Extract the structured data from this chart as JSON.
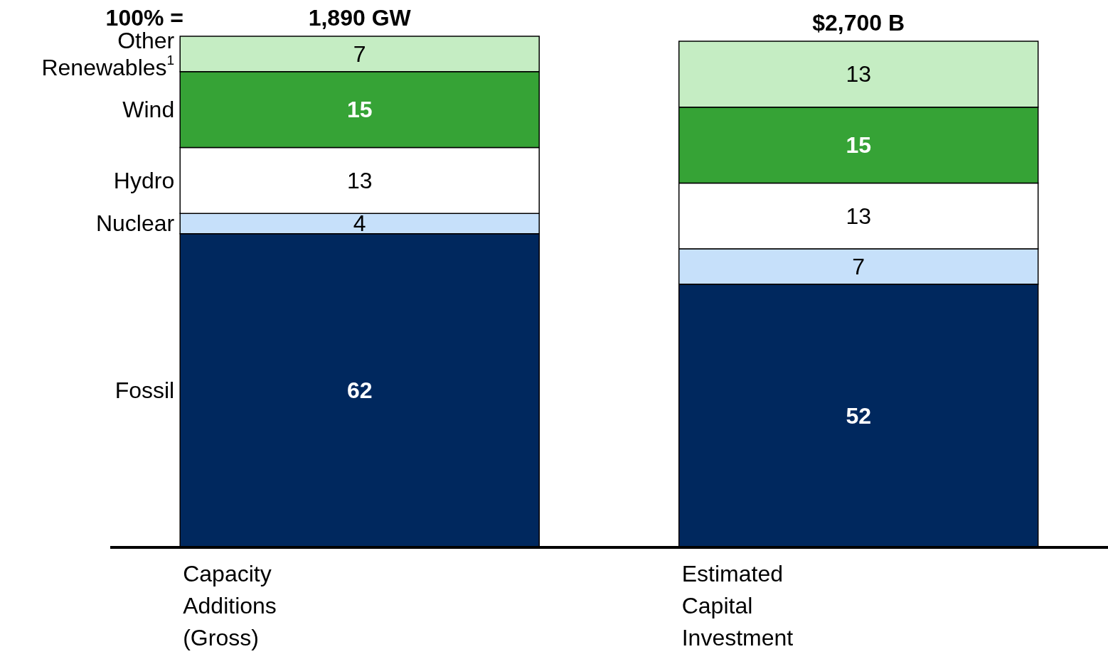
{
  "chart_data": {
    "type": "bar",
    "title": "100% =",
    "stacked": true,
    "data_labels": true,
    "categories": [
      "Capacity Additions (Gross)",
      "Estimated Capital Investment"
    ],
    "annotations": [
      "1,890 GW",
      "$2,700 B"
    ],
    "series": [
      {
        "name": "Fossil",
        "color": "#00285e",
        "values": [
          62,
          52
        ]
      },
      {
        "name": "Nuclear",
        "color": "#c6e0fa",
        "values": [
          4,
          7
        ]
      },
      {
        "name": "Hydro",
        "color": "#ffffff",
        "values": [
          13,
          13
        ]
      },
      {
        "name": "Wind",
        "color": "#36a336",
        "values": [
          15,
          15
        ]
      },
      {
        "name": "Other Renewables$^{1}$",
        "color": "#c5edc3",
        "values": [
          7,
          13
        ]
      }
    ]
  }
}
